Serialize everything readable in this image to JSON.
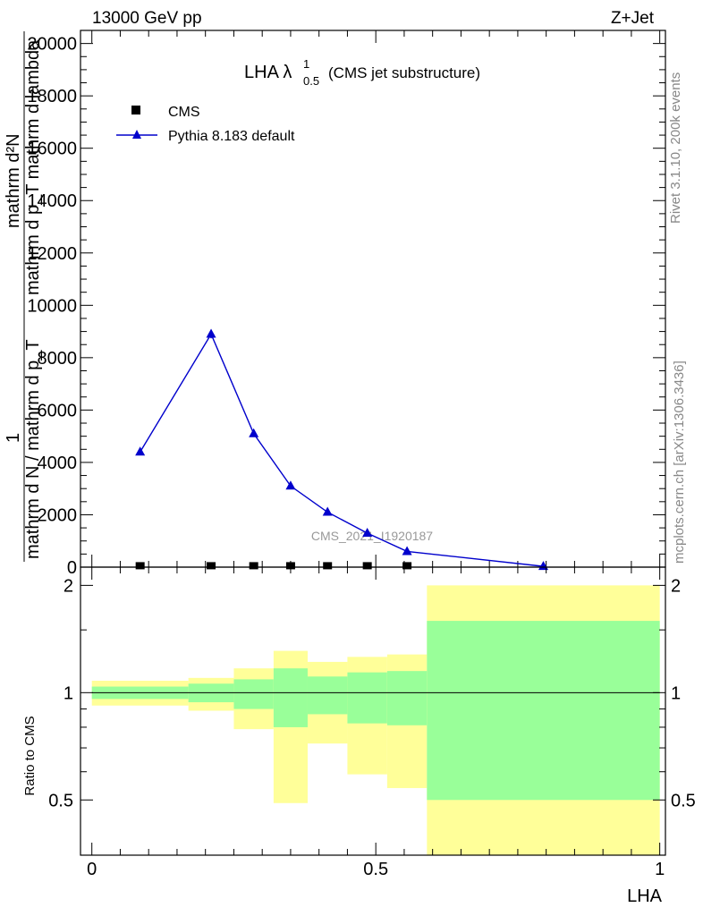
{
  "header": {
    "left": "13000 GeV pp",
    "right": "Z+Jet"
  },
  "side_labels": {
    "rivet": "Rivet 3.1.10,  200k events",
    "mcplots": "mcplots.cern.ch [arXiv:1306.3436]"
  },
  "watermark": "CMS_2021_I1920187",
  "colors": {
    "mc": "#0000cc",
    "band_inner": "#99ff99",
    "band_outer": "#ffff99",
    "data": "#000000"
  },
  "chart_data": [
    {
      "type": "line",
      "title_main": "LHA λ",
      "title_sup": "1",
      "title_sub": "0.5",
      "title_suffix": "(CMS jet substructure)",
      "ylabel_numerator": "mathrm d²N",
      "ylabel_denominator": "mathrm d p_T mathrm d lambda",
      "ylabel_line2": "1",
      "ylabel_line3": "mathrm d N / mathrm d p_T",
      "xlim": [
        -0.02,
        1.01
      ],
      "ylim": [
        0,
        20500
      ],
      "y_ticks": [
        0,
        2000,
        4000,
        6000,
        8000,
        10000,
        12000,
        14000,
        16000,
        18000,
        20000
      ],
      "y_tick_labels": [
        "0",
        "2000",
        "4000",
        "6000",
        "8000",
        "10000",
        "12000",
        "14000",
        "16000",
        "18000",
        "20000"
      ],
      "legend": [
        {
          "label": "CMS",
          "marker": "square"
        },
        {
          "label": "Pythia 8.183 default",
          "marker": "triangle"
        }
      ],
      "series": [
        {
          "name": "CMS",
          "x": [
            0.085,
            0.21,
            0.285,
            0.35,
            0.415,
            0.485,
            0.555
          ],
          "y": [
            20,
            20,
            20,
            20,
            20,
            20,
            20
          ]
        },
        {
          "name": "Pythia 8.183 default",
          "x": [
            0.085,
            0.21,
            0.285,
            0.35,
            0.415,
            0.485,
            0.555,
            0.795
          ],
          "y": [
            4400,
            8900,
            5100,
            3100,
            2100,
            1300,
            600,
            30
          ],
          "err": [
            60,
            160,
            120,
            80,
            60,
            50,
            40,
            10
          ]
        }
      ]
    },
    {
      "type": "area",
      "ylabel": "Ratio to CMS",
      "xlabel": "LHA",
      "xlim": [
        -0.02,
        1.01
      ],
      "ylim": [
        0.35,
        2.25
      ],
      "x_ticks": [
        0,
        0.5,
        1
      ],
      "x_tick_labels": [
        "0",
        "0.5",
        "1"
      ],
      "y_ticks": [
        0.5,
        1,
        2
      ],
      "y_tick_labels": [
        "0.5",
        "1",
        "2"
      ],
      "bins": [
        {
          "lo": 0.0,
          "hi": 0.17,
          "outer": [
            0.92,
            1.08
          ],
          "inner": [
            0.96,
            1.04
          ]
        },
        {
          "lo": 0.17,
          "hi": 0.25,
          "outer": [
            0.89,
            1.1
          ],
          "inner": [
            0.94,
            1.06
          ]
        },
        {
          "lo": 0.25,
          "hi": 0.32,
          "outer": [
            0.79,
            1.17
          ],
          "inner": [
            0.9,
            1.09
          ]
        },
        {
          "lo": 0.32,
          "hi": 0.38,
          "outer": [
            0.49,
            1.31
          ],
          "inner": [
            0.8,
            1.17
          ]
        },
        {
          "lo": 0.38,
          "hi": 0.45,
          "outer": [
            0.72,
            1.22
          ],
          "inner": [
            0.87,
            1.11
          ]
        },
        {
          "lo": 0.45,
          "hi": 0.52,
          "outer": [
            0.59,
            1.26
          ],
          "inner": [
            0.82,
            1.14
          ]
        },
        {
          "lo": 0.52,
          "hi": 0.59,
          "outer": [
            0.54,
            1.28
          ],
          "inner": [
            0.81,
            1.15
          ]
        },
        {
          "lo": 0.59,
          "hi": 1.0,
          "outer": [
            0.35,
            2.0
          ],
          "inner": [
            0.5,
            1.59
          ]
        }
      ],
      "reference": 1
    }
  ]
}
